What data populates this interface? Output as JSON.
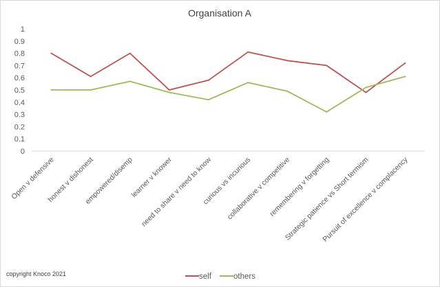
{
  "chart_data": {
    "type": "line",
    "title": "Organisation A",
    "categories": [
      "Open v defensive",
      "honest v dishonest",
      "empowered/disemp",
      "learner v knower",
      "need to share v need to know",
      "curious vs incurious",
      "collaborative v competitive",
      "remembering v forgetting",
      "Strategic patience vs Short termism",
      "Pursuit of excellence v complacency"
    ],
    "series": [
      {
        "name": "self",
        "color": "#c0504d",
        "values": [
          0.8,
          0.61,
          0.8,
          0.5,
          0.58,
          0.81,
          0.74,
          0.7,
          0.48,
          0.72
        ]
      },
      {
        "name": "others",
        "color": "#9bbb59",
        "values": [
          0.5,
          0.5,
          0.57,
          0.48,
          0.42,
          0.56,
          0.49,
          0.32,
          0.52,
          0.61
        ]
      }
    ],
    "ylim": [
      0,
      1
    ],
    "yticks": [
      "0",
      "0.1",
      "0.2",
      "0.3",
      "0.4",
      "0.5",
      "0.6",
      "0.7",
      "0.8",
      "0.9",
      "1"
    ],
    "grid": false,
    "legend_position": "bottom"
  },
  "footer": {
    "copyright": "copyright Knoco 2021"
  }
}
